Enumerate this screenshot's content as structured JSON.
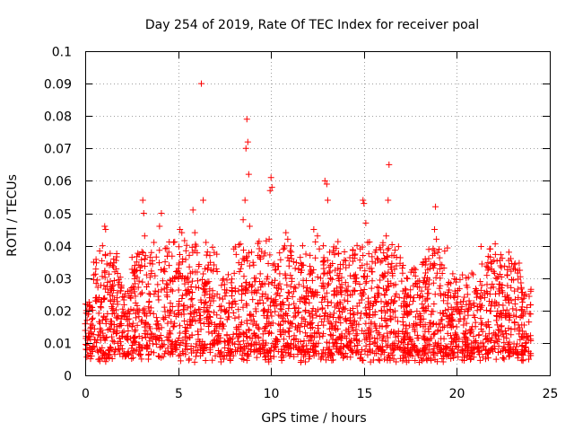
{
  "chart_data": {
    "type": "scatter",
    "title": "Day 254 of 2019, Rate Of TEC Index for receiver poal",
    "xlabel": "GPS time / hours",
    "ylabel": "ROTI / TECUs",
    "xlim": [
      0,
      25
    ],
    "ylim": [
      0,
      0.1
    ],
    "x_ticks": [
      0,
      5,
      10,
      15,
      20,
      25
    ],
    "x_tick_labels": [
      "0",
      "5",
      "10",
      "15",
      "20",
      "25"
    ],
    "y_ticks": [
      0,
      0.01,
      0.02,
      0.03,
      0.04,
      0.05,
      0.06,
      0.07,
      0.08,
      0.09,
      0.1
    ],
    "y_tick_labels": [
      "0",
      "0.01",
      "0.02",
      "0.03",
      "0.04",
      "0.05",
      "0.06",
      "0.07",
      "0.08",
      "0.09",
      "0.1"
    ],
    "grid": true,
    "marker": "+",
    "marker_color": "#ff0000",
    "series": [
      {
        "name": "ROTI",
        "note": "dense cloud of points sampled across the day; baseline ~0.01-0.03 with peaks",
        "points": [
          [
            0.1,
            0.017
          ],
          [
            0.2,
            0.013
          ],
          [
            0.35,
            0.021
          ],
          [
            0.5,
            0.011
          ],
          [
            0.6,
            0.024
          ],
          [
            0.8,
            0.016
          ],
          [
            0.95,
            0.013
          ],
          [
            1.05,
            0.046
          ],
          [
            1.1,
            0.045
          ],
          [
            1.2,
            0.019
          ],
          [
            1.3,
            0.034
          ],
          [
            1.5,
            0.022
          ],
          [
            1.7,
            0.015
          ],
          [
            1.9,
            0.026
          ],
          [
            2.1,
            0.018
          ],
          [
            2.3,
            0.012
          ],
          [
            2.5,
            0.027
          ],
          [
            2.7,
            0.014
          ],
          [
            2.9,
            0.02
          ],
          [
            3.1,
            0.054
          ],
          [
            3.15,
            0.05
          ],
          [
            3.2,
            0.043
          ],
          [
            3.3,
            0.031
          ],
          [
            3.5,
            0.025
          ],
          [
            3.7,
            0.041
          ],
          [
            3.9,
            0.028
          ],
          [
            4.0,
            0.046
          ],
          [
            4.1,
            0.05
          ],
          [
            4.3,
            0.035
          ],
          [
            4.5,
            0.038
          ],
          [
            4.7,
            0.026
          ],
          [
            4.9,
            0.032
          ],
          [
            5.1,
            0.045
          ],
          [
            5.2,
            0.044
          ],
          [
            5.4,
            0.03
          ],
          [
            5.6,
            0.037
          ],
          [
            5.8,
            0.051
          ],
          [
            5.9,
            0.044
          ],
          [
            6.1,
            0.027
          ],
          [
            6.25,
            0.09
          ],
          [
            6.35,
            0.054
          ],
          [
            6.5,
            0.041
          ],
          [
            6.7,
            0.025
          ],
          [
            6.9,
            0.023
          ],
          [
            7.1,
            0.032
          ],
          [
            7.3,
            0.02
          ],
          [
            7.5,
            0.028
          ],
          [
            7.7,
            0.018
          ],
          [
            7.9,
            0.027
          ],
          [
            8.1,
            0.022
          ],
          [
            8.3,
            0.032
          ],
          [
            8.5,
            0.048
          ],
          [
            8.6,
            0.054
          ],
          [
            8.65,
            0.07
          ],
          [
            8.7,
            0.079
          ],
          [
            8.75,
            0.072
          ],
          [
            8.8,
            0.062
          ],
          [
            8.85,
            0.046
          ],
          [
            8.95,
            0.038
          ],
          [
            9.1,
            0.03
          ],
          [
            9.3,
            0.022
          ],
          [
            9.5,
            0.028
          ],
          [
            9.7,
            0.025
          ],
          [
            9.9,
            0.042
          ],
          [
            9.95,
            0.057
          ],
          [
            10.0,
            0.061
          ],
          [
            10.05,
            0.058
          ],
          [
            10.1,
            0.034
          ],
          [
            10.3,
            0.027
          ],
          [
            10.5,
            0.022
          ],
          [
            10.8,
            0.044
          ],
          [
            10.9,
            0.042
          ],
          [
            11.1,
            0.036
          ],
          [
            11.3,
            0.033
          ],
          [
            11.5,
            0.028
          ],
          [
            11.7,
            0.04
          ],
          [
            11.9,
            0.026
          ],
          [
            12.1,
            0.037
          ],
          [
            12.3,
            0.045
          ],
          [
            12.5,
            0.043
          ],
          [
            12.6,
            0.039
          ],
          [
            12.8,
            0.035
          ],
          [
            12.9,
            0.06
          ],
          [
            13.0,
            0.059
          ],
          [
            13.05,
            0.054
          ],
          [
            13.2,
            0.03
          ],
          [
            13.4,
            0.025
          ],
          [
            13.6,
            0.033
          ],
          [
            13.8,
            0.028
          ],
          [
            14.0,
            0.026
          ],
          [
            14.2,
            0.034
          ],
          [
            14.4,
            0.037
          ],
          [
            14.6,
            0.03
          ],
          [
            14.8,
            0.039
          ],
          [
            14.95,
            0.054
          ],
          [
            15.0,
            0.053
          ],
          [
            15.1,
            0.047
          ],
          [
            15.2,
            0.041
          ],
          [
            15.4,
            0.033
          ],
          [
            15.6,
            0.038
          ],
          [
            15.8,
            0.027
          ],
          [
            16.0,
            0.031
          ],
          [
            16.2,
            0.043
          ],
          [
            16.3,
            0.054
          ],
          [
            16.35,
            0.065
          ],
          [
            16.5,
            0.037
          ],
          [
            16.7,
            0.028
          ],
          [
            16.9,
            0.024
          ],
          [
            17.1,
            0.026
          ],
          [
            17.3,
            0.03
          ],
          [
            17.5,
            0.024
          ],
          [
            17.7,
            0.033
          ],
          [
            17.9,
            0.029
          ],
          [
            18.1,
            0.026
          ],
          [
            18.3,
            0.023
          ],
          [
            18.5,
            0.028
          ],
          [
            18.7,
            0.037
          ],
          [
            18.8,
            0.045
          ],
          [
            18.85,
            0.052
          ],
          [
            18.9,
            0.042
          ],
          [
            19.1,
            0.03
          ],
          [
            19.3,
            0.025
          ],
          [
            19.5,
            0.028
          ],
          [
            19.7,
            0.021
          ],
          [
            19.9,
            0.026
          ],
          [
            20.1,
            0.02
          ],
          [
            20.3,
            0.031
          ],
          [
            20.5,
            0.03
          ],
          [
            20.7,
            0.014
          ],
          [
            20.9,
            0.012
          ],
          [
            21.1,
            0.02
          ],
          [
            21.3,
            0.021
          ],
          [
            21.5,
            0.024
          ],
          [
            21.7,
            0.033
          ],
          [
            21.8,
            0.039
          ],
          [
            21.9,
            0.035
          ],
          [
            22.1,
            0.03
          ],
          [
            22.3,
            0.026
          ],
          [
            22.5,
            0.02
          ],
          [
            22.7,
            0.031
          ],
          [
            22.8,
            0.038
          ],
          [
            22.9,
            0.036
          ],
          [
            23.1,
            0.026
          ],
          [
            23.3,
            0.024
          ],
          [
            23.5,
            0.02
          ],
          [
            23.7,
            0.025
          ],
          [
            23.9,
            0.019
          ],
          [
            0.4,
            0.009
          ],
          [
            1.4,
            0.008
          ],
          [
            2.6,
            0.01
          ],
          [
            3.4,
            0.005
          ],
          [
            4.6,
            0.007
          ],
          [
            5.7,
            0.009
          ],
          [
            7.0,
            0.006
          ],
          [
            7.8,
            0.005
          ],
          [
            9.2,
            0.008
          ],
          [
            11.0,
            0.006
          ],
          [
            11.6,
            0.004
          ],
          [
            12.4,
            0.009
          ],
          [
            14.3,
            0.01
          ],
          [
            15.3,
            0.008
          ],
          [
            16.1,
            0.005
          ],
          [
            17.4,
            0.007
          ],
          [
            18.2,
            0.005
          ],
          [
            19.4,
            0.009
          ],
          [
            20.6,
            0.007
          ],
          [
            21.4,
            0.01
          ],
          [
            22.6,
            0.008
          ],
          [
            23.4,
            0.011
          ]
        ]
      }
    ]
  }
}
